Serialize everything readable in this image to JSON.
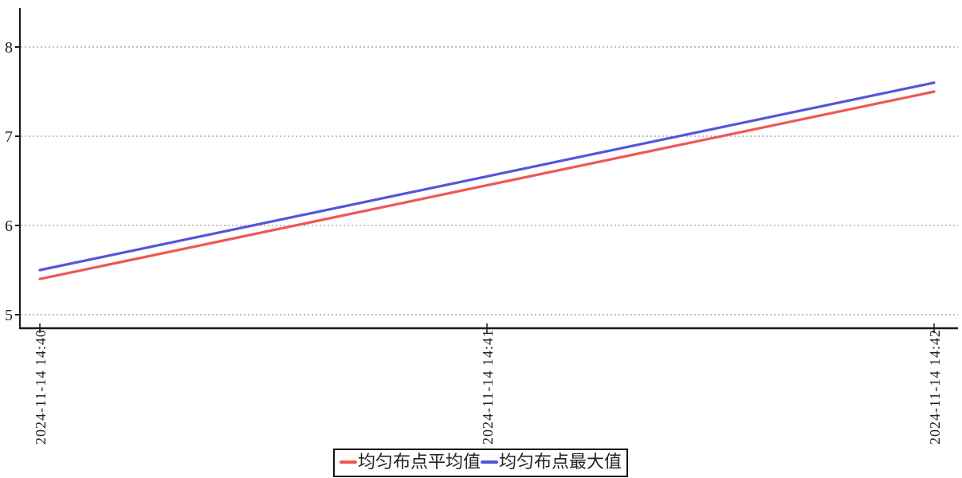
{
  "chart_data": {
    "type": "line",
    "title": "",
    "x": [
      "2024-11-14 14:40",
      "2024-11-14 14:41",
      "2024-11-14 14:42"
    ],
    "xlabel": "",
    "ylabel": "",
    "y_ticks": [
      5,
      6,
      7,
      8
    ],
    "ylim": [
      4.85,
      8.45
    ],
    "grid": {
      "horizontal": true,
      "vertical": false,
      "style": "dotted"
    },
    "legend_position": "bottom-center",
    "series": [
      {
        "name": "均匀布点平均值",
        "color": "#ee5757",
        "values": [
          5.4,
          6.45,
          7.5
        ]
      },
      {
        "name": "均匀布点最大值",
        "color": "#5454dd",
        "values": [
          5.5,
          6.55,
          7.6
        ]
      }
    ]
  },
  "colors": {
    "axis": "#1a1a1a",
    "grid": "#999999",
    "tick_label": "#222222",
    "background": "#ffffff",
    "legend_border": "#111111"
  }
}
